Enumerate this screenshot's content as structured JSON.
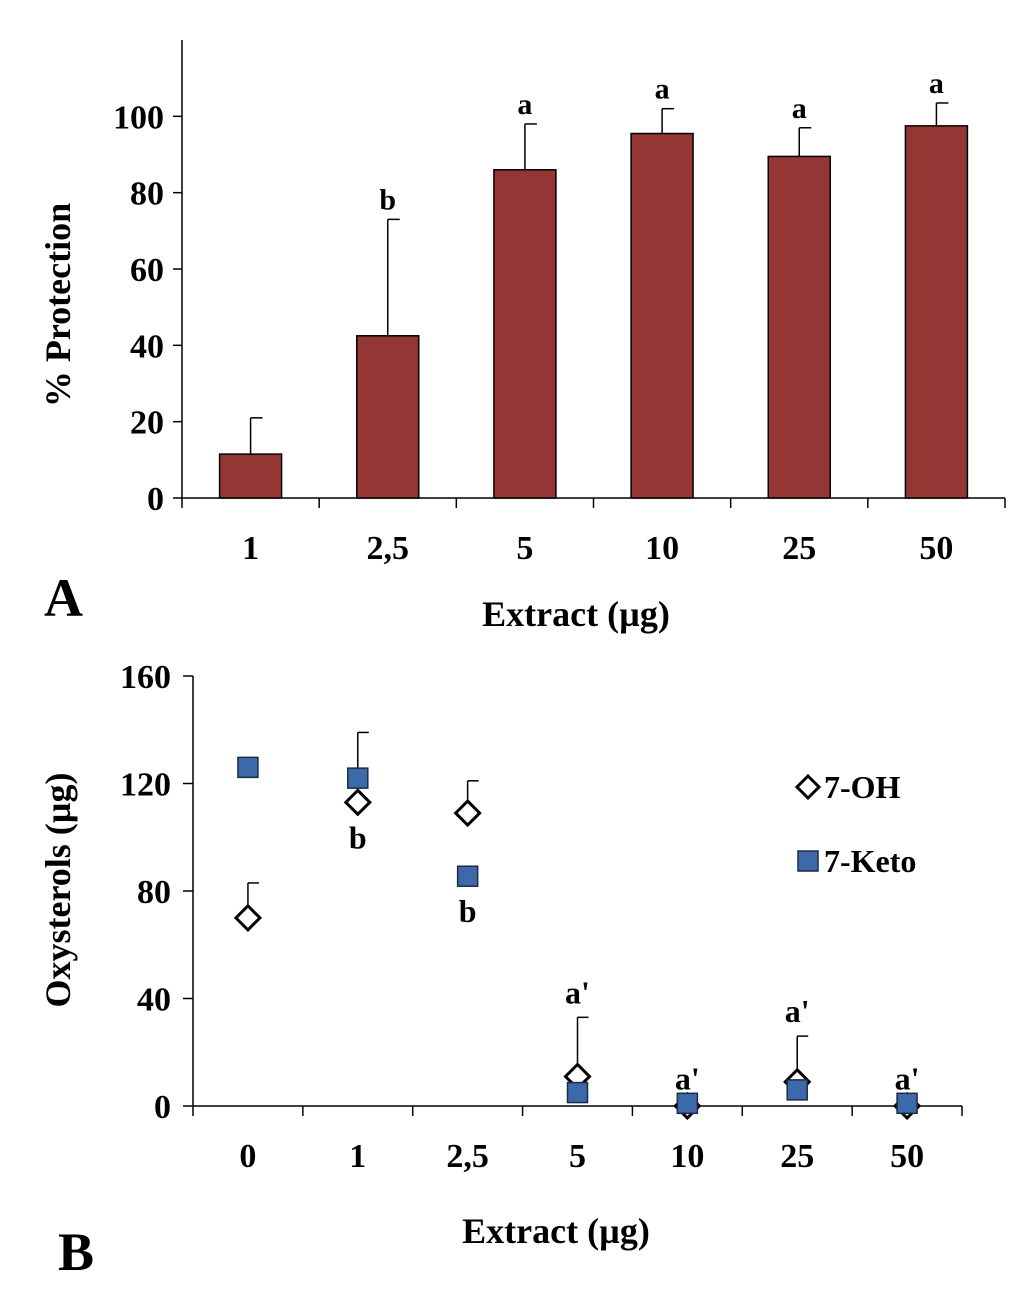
{
  "chart_data": [
    {
      "panel": "A",
      "type": "bar",
      "title": "",
      "xlabel": "Extract (µg)",
      "ylabel": "%  Protection",
      "ylim": [
        0,
        120
      ],
      "yticks": [
        0,
        20,
        40,
        60,
        80,
        100
      ],
      "categories": [
        "1",
        "2,5",
        "5",
        "10",
        "25",
        "50"
      ],
      "values": [
        11.5,
        42.5,
        86,
        95.5,
        89.5,
        97.5
      ],
      "errors": [
        9.5,
        30.5,
        12,
        6.5,
        7.5,
        6
      ],
      "annotations": [
        "",
        "b",
        "a",
        "a",
        "a",
        "a"
      ],
      "bar_color": "#943634",
      "grid": false
    },
    {
      "panel": "B",
      "type": "scatter",
      "title": "",
      "xlabel": "Extract (µg)",
      "ylabel": "Oxysterols  (µg)",
      "ylim": [
        0,
        160
      ],
      "yticks": [
        0,
        40,
        80,
        120,
        160
      ],
      "categories": [
        "0",
        "1",
        "2,5",
        "5",
        "10",
        "25",
        "50"
      ],
      "series": [
        {
          "name": "7-OH",
          "marker": "open-diamond",
          "values": [
            70,
            113,
            109,
            11,
            0,
            9,
            0
          ],
          "errors": [
            13,
            0,
            12,
            22,
            0,
            17,
            0
          ]
        },
        {
          "name": "7-Keto",
          "marker": "filled-square",
          "color": "#3c6aa8",
          "values": [
            126,
            122,
            85.5,
            5,
            1,
            6,
            1
          ],
          "errors": [
            0,
            17,
            0,
            0,
            0,
            0,
            0
          ]
        }
      ],
      "annotations": [
        {
          "category": "1",
          "text": "b",
          "position": "below"
        },
        {
          "category": "2,5",
          "text": "b",
          "position": "below"
        },
        {
          "category": "5",
          "text": "a'",
          "position": "above"
        },
        {
          "category": "10",
          "text": "a'",
          "position": "above"
        },
        {
          "category": "25",
          "text": "a'",
          "position": "above"
        },
        {
          "category": "50",
          "text": "a'",
          "position": "above"
        }
      ],
      "legend_position": "right",
      "grid": false
    }
  ]
}
